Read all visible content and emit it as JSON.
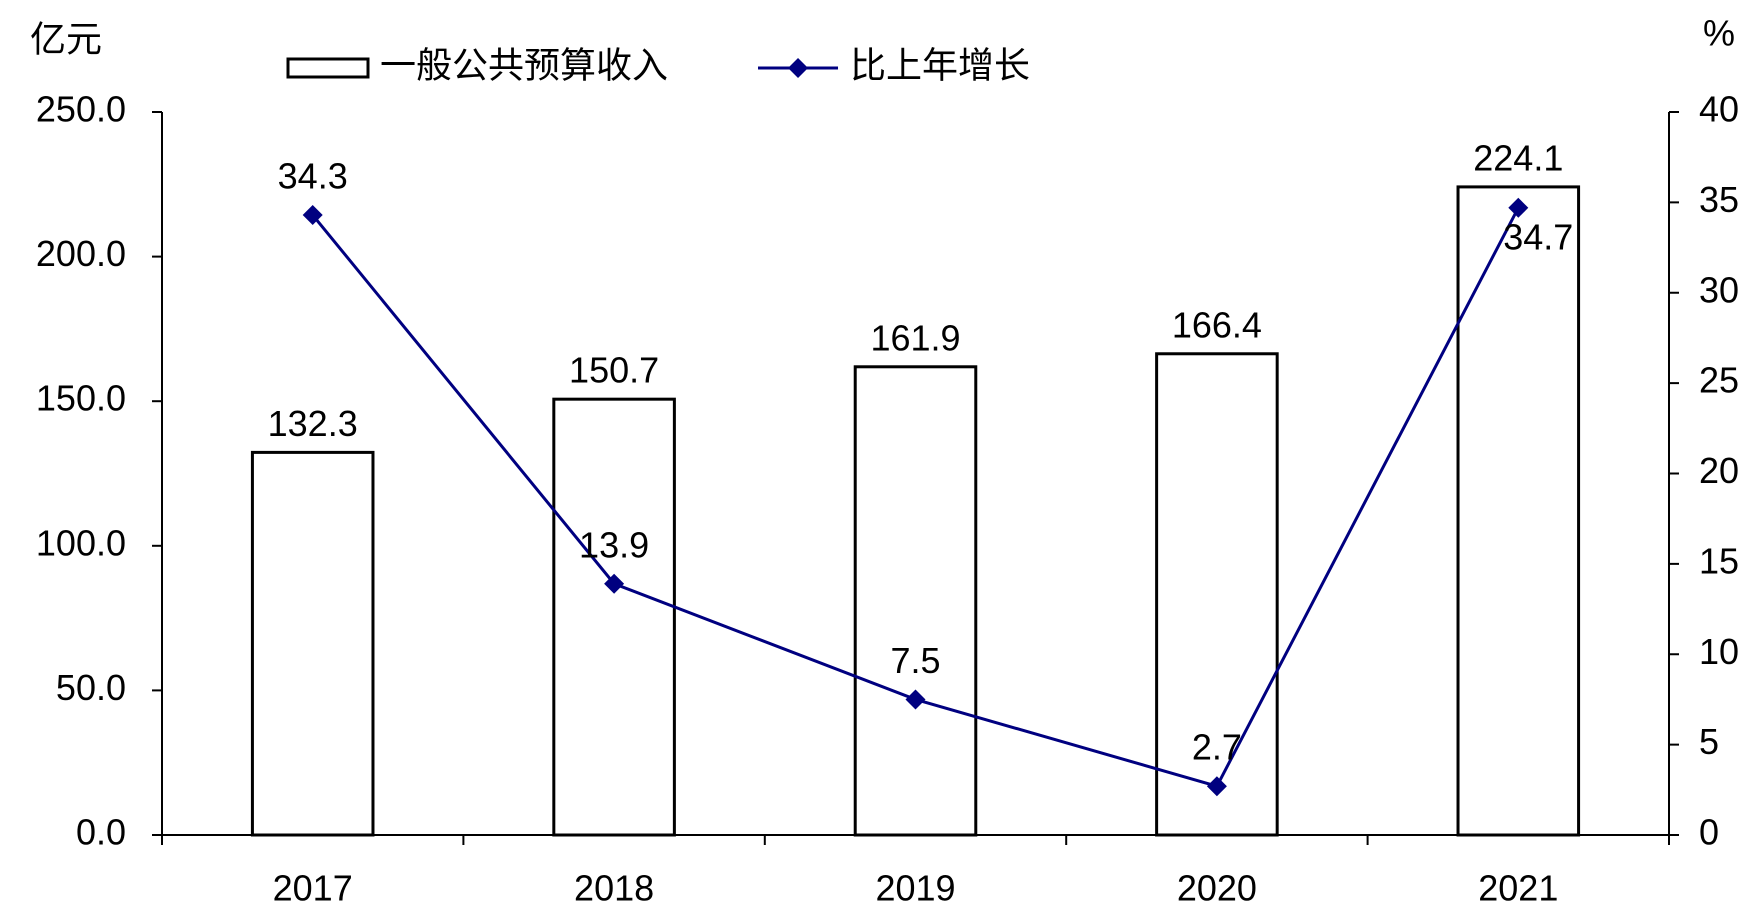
{
  "chart_data": {
    "type": "bar-line",
    "y_axis_label": "亿元",
    "y2_axis_label": "%",
    "categories": [
      "2017",
      "2018",
      "2019",
      "2020",
      "2021"
    ],
    "series": [
      {
        "name": "一般公共预算收入",
        "type": "bar",
        "color": "#ffffff",
        "values": [
          132.3,
          150.7,
          161.9,
          166.4,
          224.1
        ]
      },
      {
        "name": "比上年增长",
        "type": "line",
        "axis": "y2",
        "color": "#000080",
        "values": [
          34.3,
          13.9,
          7.5,
          2.7,
          34.7
        ]
      }
    ],
    "ylim": [
      0,
      250
    ],
    "yticks": [
      {
        "value": 0,
        "label": "0.0"
      },
      {
        "value": 50,
        "label": "50.0"
      },
      {
        "value": 100,
        "label": "100.0"
      },
      {
        "value": 150,
        "label": "150.0"
      },
      {
        "value": 200,
        "label": "200.0"
      },
      {
        "value": 250,
        "label": "250.0"
      }
    ],
    "y2lim": [
      0,
      40
    ],
    "y2ticks": [
      0,
      5,
      10,
      15,
      20,
      25,
      30,
      35,
      40
    ]
  }
}
